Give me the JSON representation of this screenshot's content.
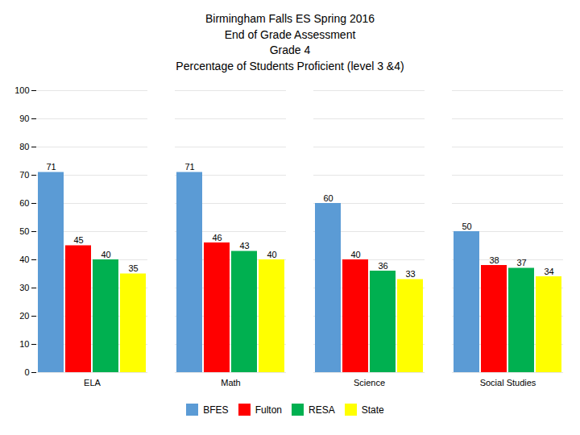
{
  "chart_data": {
    "type": "bar",
    "title": "Birmingham Falls ES  Spring 2016\nEnd of Grade Assessment\nGrade 4\nPercentage of Students Proficient (level 3 &4)",
    "categories": [
      "ELA",
      "Math",
      "Science",
      "Social Studies"
    ],
    "series": [
      {
        "name": "BFES",
        "color": "#5b9bd5",
        "values": [
          71,
          71,
          60,
          50
        ]
      },
      {
        "name": "Fulton",
        "color": "#ff0000",
        "values": [
          45,
          46,
          40,
          38
        ]
      },
      {
        "name": "RESA",
        "color": "#00b050",
        "values": [
          40,
          43,
          36,
          37
        ]
      },
      {
        "name": "State",
        "color": "#ffff00",
        "values": [
          35,
          40,
          33,
          34
        ]
      }
    ],
    "ylim": [
      0,
      100
    ],
    "yticks": [
      0,
      10,
      20,
      30,
      40,
      50,
      60,
      70,
      80,
      90,
      100
    ],
    "grid": true,
    "data_labels": true,
    "legend": "bottom"
  }
}
